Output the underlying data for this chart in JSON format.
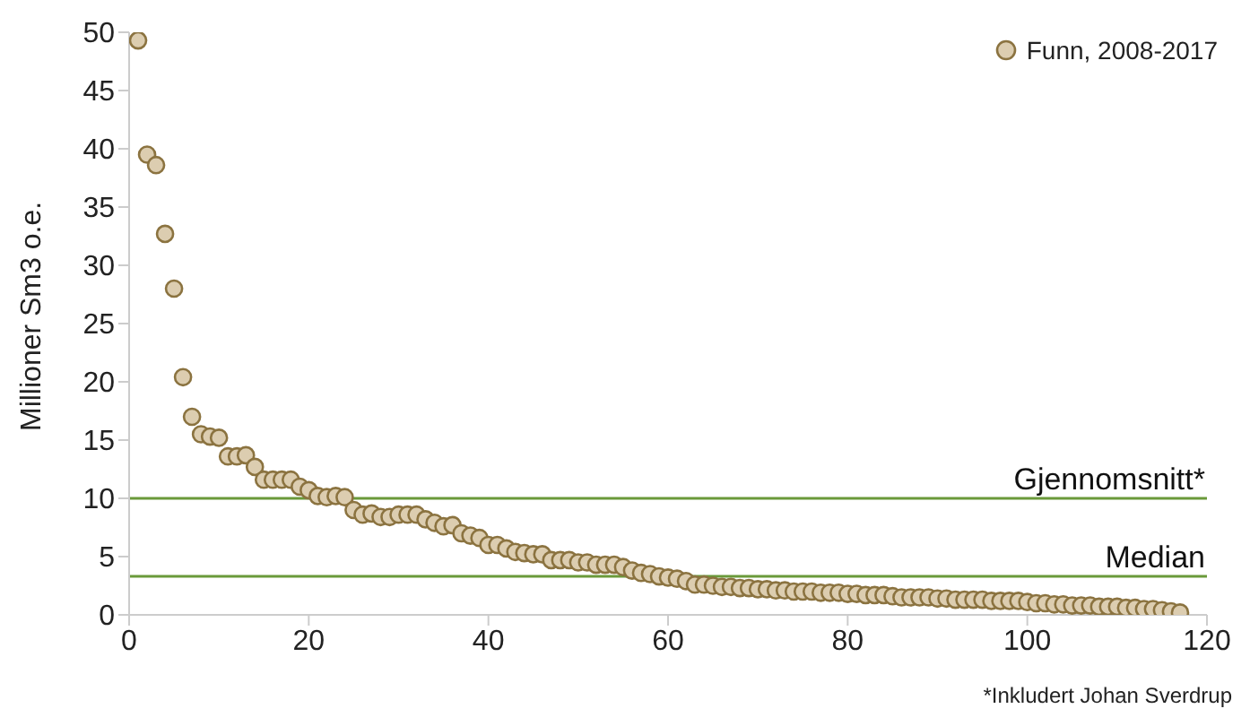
{
  "chart_data": {
    "type": "scatter",
    "ylabel": "Millioner Sm3 o.e.",
    "x": [
      1,
      2,
      3,
      4,
      5,
      6,
      7,
      8,
      9,
      10,
      11,
      12,
      13,
      14,
      15,
      16,
      17,
      18,
      19,
      20,
      21,
      22,
      23,
      24,
      25,
      26,
      27,
      28,
      29,
      30,
      31,
      32,
      33,
      34,
      35,
      36,
      37,
      38,
      39,
      40,
      41,
      42,
      43,
      44,
      45,
      46,
      47,
      48,
      49,
      50,
      51,
      52,
      53,
      54,
      55,
      56,
      57,
      58,
      59,
      60,
      61,
      62,
      63,
      64,
      65,
      66,
      67,
      68,
      69,
      70,
      71,
      72,
      73,
      74,
      75,
      76,
      77,
      78,
      79,
      80,
      81,
      82,
      83,
      84,
      85,
      86,
      87,
      88,
      89,
      90,
      91,
      92,
      93,
      94,
      95,
      96,
      97,
      98,
      99,
      100,
      101,
      102,
      103,
      104,
      105,
      106,
      107,
      108,
      109,
      110,
      111,
      112,
      113,
      114,
      115,
      116,
      117
    ],
    "series": [
      {
        "name": "Funn, 2008-2017",
        "color": "#dccdb0",
        "values": [
          49.3,
          39.5,
          38.6,
          32.7,
          28,
          20.4,
          17,
          15.5,
          15.3,
          15.2,
          13.6,
          13.6,
          13.7,
          12.7,
          11.6,
          11.6,
          11.6,
          11.6,
          11,
          10.7,
          10.2,
          10.1,
          10.2,
          10.1,
          9,
          8.6,
          8.7,
          8.4,
          8.4,
          8.6,
          8.6,
          8.6,
          8.2,
          7.9,
          7.6,
          7.7,
          7,
          6.8,
          6.6,
          6,
          6,
          5.7,
          5.4,
          5.3,
          5.2,
          5.2,
          4.7,
          4.7,
          4.7,
          4.5,
          4.5,
          4.3,
          4.3,
          4.3,
          4.1,
          3.8,
          3.6,
          3.5,
          3.3,
          3.2,
          3.1,
          2.9,
          2.6,
          2.6,
          2.5,
          2.4,
          2.4,
          2.3,
          2.3,
          2.2,
          2.2,
          2.1,
          2.1,
          2,
          2,
          2,
          1.9,
          1.9,
          1.9,
          1.8,
          1.8,
          1.7,
          1.7,
          1.7,
          1.6,
          1.5,
          1.5,
          1.5,
          1.5,
          1.4,
          1.4,
          1.3,
          1.3,
          1.3,
          1.3,
          1.2,
          1.2,
          1.2,
          1.2,
          1.1,
          1,
          1,
          0.9,
          0.9,
          0.8,
          0.8,
          0.8,
          0.7,
          0.7,
          0.7,
          0.6,
          0.6,
          0.5,
          0.5,
          0.4,
          0.3,
          0.2
        ]
      }
    ],
    "xlim": [
      0,
      120
    ],
    "xticks": [
      0,
      20,
      40,
      60,
      80,
      100,
      120
    ],
    "ylim": [
      0,
      50
    ],
    "yticks": [
      0,
      5,
      10,
      15,
      20,
      25,
      30,
      35,
      40,
      45,
      50
    ],
    "ref_lines": [
      {
        "axis": "y",
        "value": 10,
        "label": "Gjennomsnitt*",
        "color": "#6a9a3a"
      },
      {
        "axis": "y",
        "value": 3.3,
        "label": "Median",
        "color": "#6a9a3a"
      }
    ],
    "annotations": [
      "*Inkludert Johan Sverdrup"
    ],
    "grid": false,
    "legend": "top right",
    "marker": "circle"
  }
}
